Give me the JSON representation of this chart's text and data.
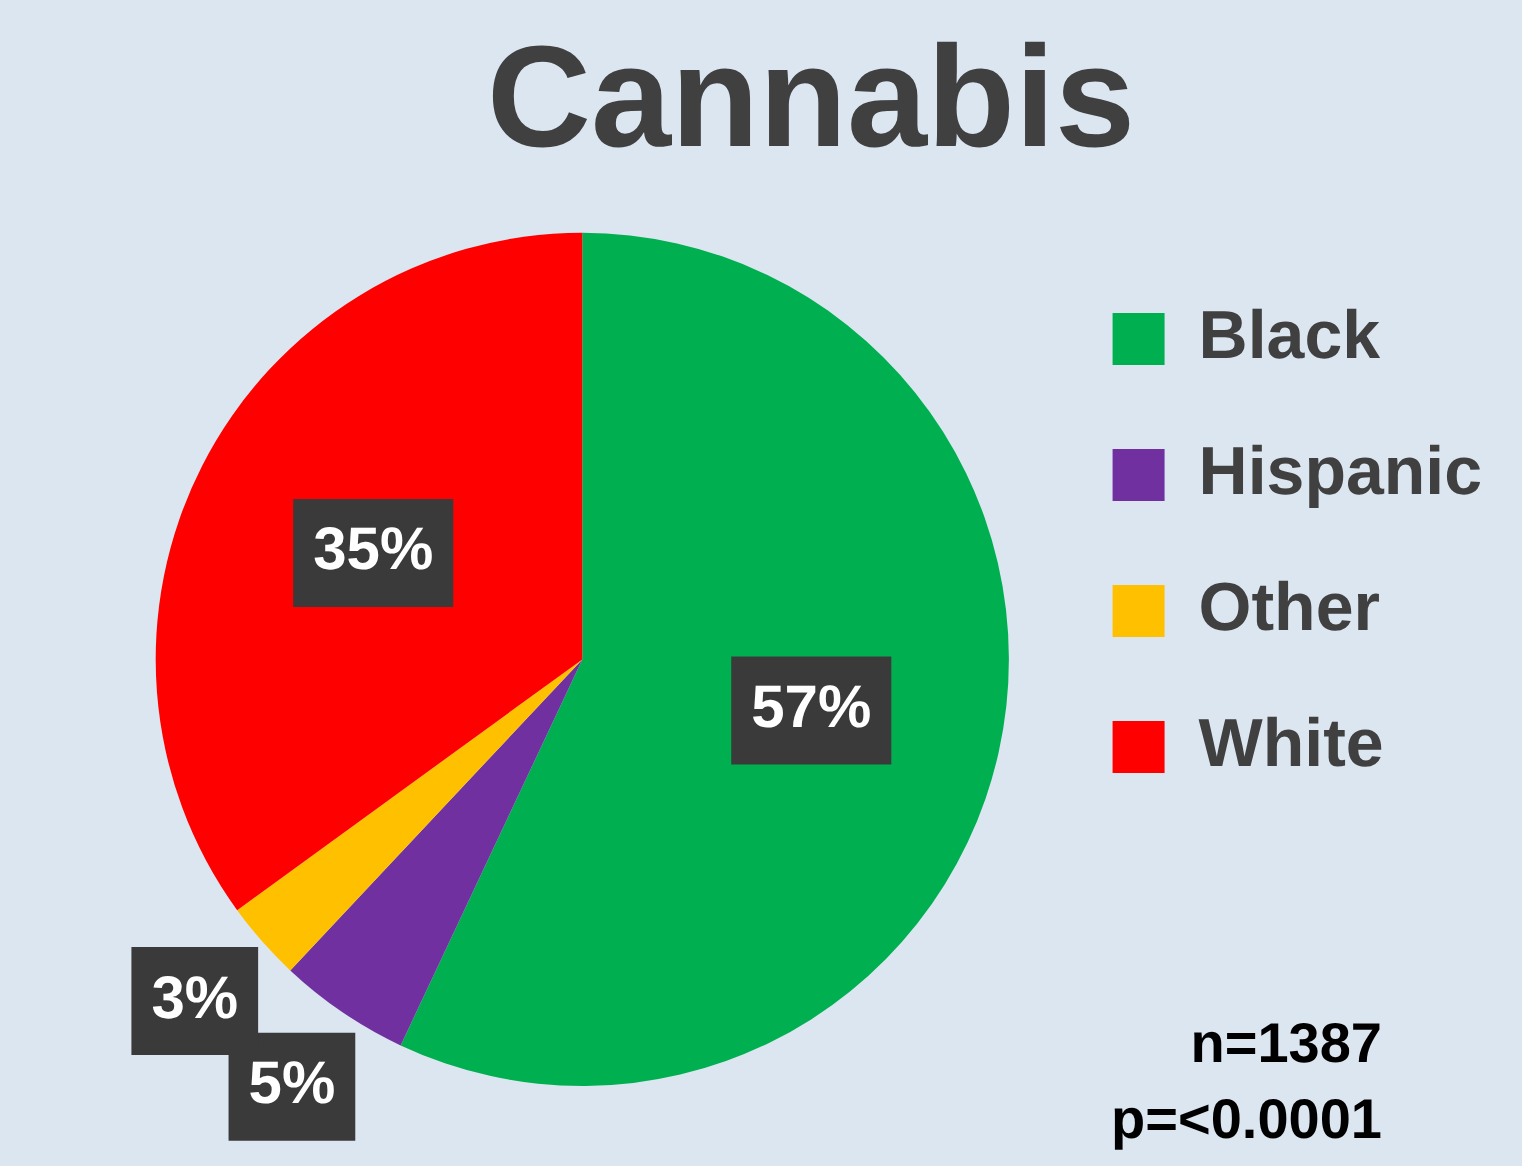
{
  "chart_data": {
    "type": "pie",
    "title": "Cannabis",
    "categories": [
      "Black",
      "Hispanic",
      "Other",
      "White"
    ],
    "values": [
      57,
      5,
      3,
      35
    ],
    "value_labels": [
      "57%",
      "5%",
      "3%",
      "35%"
    ],
    "colors": [
      "#00b050",
      "#7030a0",
      "#ffc000",
      "#ff0000"
    ],
    "legend": "right",
    "annotations": [
      "n=1387",
      "p=<0.0001"
    ]
  }
}
